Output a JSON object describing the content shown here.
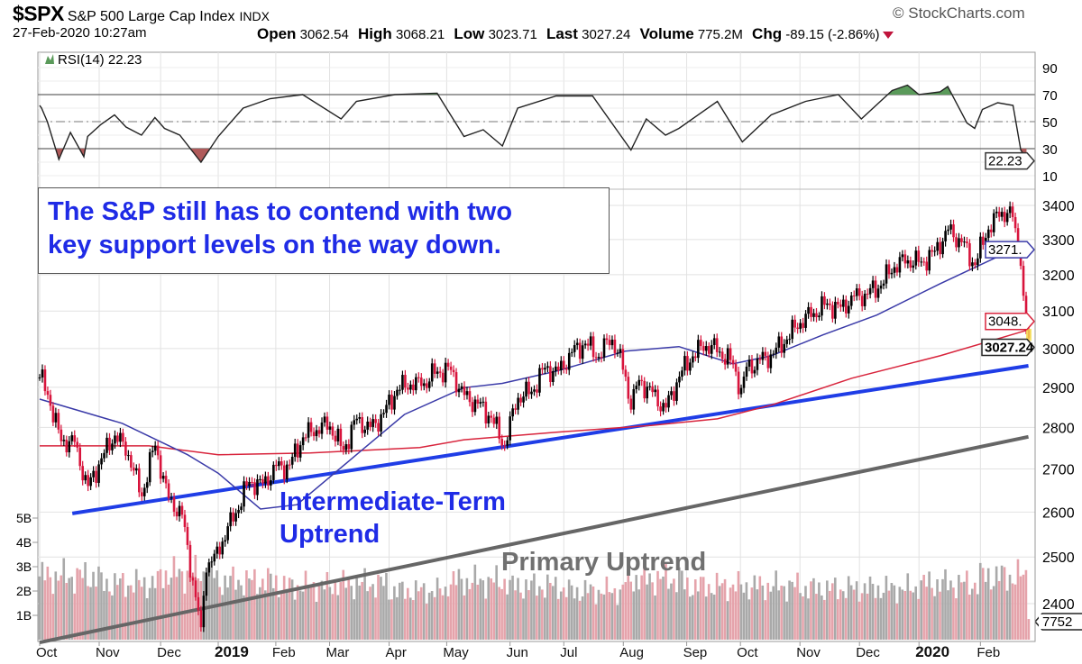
{
  "header": {
    "symbol": "$SPX",
    "name": "S&P 500 Large Cap Index",
    "exchange": "INDX",
    "datetime": "27-Feb-2020 10:27am",
    "copyright": "© StockCharts.com",
    "open_label": "Open",
    "open": "3062.54",
    "high_label": "High",
    "high": "3068.21",
    "low_label": "Low",
    "low": "3023.71",
    "last_label": "Last",
    "last": "3027.24",
    "volume_label": "Volume",
    "volume": "775.2M",
    "chg_label": "Chg",
    "chg": "-89.15 (-2.86%)",
    "chg_direction": "down"
  },
  "annotations": {
    "note_line1": "The S&P still has to contend with two",
    "note_line2": "key support levels on the way down.",
    "intermediate_line1": "Intermediate-Term",
    "intermediate_line2": "Uptrend",
    "primary": "Primary Uptrend"
  },
  "colors": {
    "up_bar": "#000000",
    "down_bar": "#d8143c",
    "ma50": "#3a3aa8",
    "ma200": "#d8243c",
    "trend_intermediate": "#1f3de6",
    "trend_primary": "#666666",
    "vol_up": "#a9a9a9",
    "vol_down": "#e5a3ab",
    "rsi_over": "#5a9a5a",
    "rsi_under": "#b05a5a",
    "text_blue": "#1f2be6"
  },
  "chart_data": {
    "type": "line",
    "title": "$SPX S&P 500 Large Cap Index",
    "x_range": [
      "2018-10-01",
      "2020-02-27"
    ],
    "x_ticks": [
      {
        "label": "Oct",
        "date": "2018-10-01"
      },
      {
        "label": "Nov",
        "date": "2018-11-01"
      },
      {
        "label": "Dec",
        "date": "2018-12-03"
      },
      {
        "label": "2019",
        "date": "2019-01-02",
        "bold": true
      },
      {
        "label": "Feb",
        "date": "2019-02-01"
      },
      {
        "label": "Mar",
        "date": "2019-03-01"
      },
      {
        "label": "Apr",
        "date": "2019-04-01"
      },
      {
        "label": "May",
        "date": "2019-05-01"
      },
      {
        "label": "Jun",
        "date": "2019-06-03"
      },
      {
        "label": "Jul",
        "date": "2019-07-01"
      },
      {
        "label": "Aug",
        "date": "2019-08-01"
      },
      {
        "label": "Sep",
        "date": "2019-09-03"
      },
      {
        "label": "Oct",
        "date": "2019-10-01"
      },
      {
        "label": "Nov",
        "date": "2019-11-01"
      },
      {
        "label": "Dec",
        "date": "2019-12-02"
      },
      {
        "label": "2020",
        "date": "2020-01-02",
        "bold": true
      },
      {
        "label": "Feb",
        "date": "2020-02-03"
      }
    ],
    "rsi": {
      "label": "RSI(14) 22.23",
      "period": 14,
      "last": "22.23",
      "ylim": [
        0,
        100
      ],
      "ticks": [
        10,
        30,
        50,
        70,
        90
      ],
      "levels": {
        "overbought": 70,
        "mid": 50,
        "oversold": 30
      },
      "points": [
        [
          "2018-10-01",
          62
        ],
        [
          "2018-10-02",
          60
        ],
        [
          "2018-10-05",
          50
        ],
        [
          "2018-10-11",
          22
        ],
        [
          "2018-10-17",
          42
        ],
        [
          "2018-10-24",
          24
        ],
        [
          "2018-10-26",
          39
        ],
        [
          "2018-11-02",
          48
        ],
        [
          "2018-11-09",
          55
        ],
        [
          "2018-11-15",
          46
        ],
        [
          "2018-11-23",
          40
        ],
        [
          "2018-11-30",
          53
        ],
        [
          "2018-12-05",
          45
        ],
        [
          "2018-12-13",
          40
        ],
        [
          "2018-12-24",
          20
        ],
        [
          "2019-01-02",
          39
        ],
        [
          "2019-01-15",
          60
        ],
        [
          "2019-01-29",
          67
        ],
        [
          "2019-02-15",
          70
        ],
        [
          "2019-03-07",
          52
        ],
        [
          "2019-03-15",
          65
        ],
        [
          "2019-04-04",
          70
        ],
        [
          "2019-04-26",
          71
        ],
        [
          "2019-05-10",
          39
        ],
        [
          "2019-05-20",
          44
        ],
        [
          "2019-05-30",
          32
        ],
        [
          "2019-06-07",
          60
        ],
        [
          "2019-06-27",
          69
        ],
        [
          "2019-07-16",
          69
        ],
        [
          "2019-08-05",
          29
        ],
        [
          "2019-08-13",
          52
        ],
        [
          "2019-08-23",
          40
        ],
        [
          "2019-08-30",
          45
        ],
        [
          "2019-09-19",
          65
        ],
        [
          "2019-10-02",
          35
        ],
        [
          "2019-10-17",
          55
        ],
        [
          "2019-11-04",
          65
        ],
        [
          "2019-11-21",
          70
        ],
        [
          "2019-12-03",
          52
        ],
        [
          "2019-12-19",
          73
        ],
        [
          "2019-12-27",
          77
        ],
        [
          "2020-01-02",
          70
        ],
        [
          "2020-01-13",
          72
        ],
        [
          "2020-01-17",
          76
        ],
        [
          "2020-01-27",
          49
        ],
        [
          "2020-01-31",
          45
        ],
        [
          "2020-02-04",
          59
        ],
        [
          "2020-02-12",
          64
        ],
        [
          "2020-02-20",
          62
        ],
        [
          "2020-02-24",
          29
        ],
        [
          "2020-02-27",
          22.23
        ]
      ]
    },
    "price": {
      "scale": "log",
      "ylim": [
        2300,
        3450
      ],
      "ticks": [
        2400,
        2500,
        2600,
        2700,
        2800,
        2900,
        3000,
        3100,
        3200,
        3300,
        3400
      ],
      "last": "3027.24",
      "ma50_last": "3271.",
      "ma200_last": "3048.",
      "closes": [
        [
          "2018-10-01",
          2925
        ],
        [
          "2018-10-05",
          2885
        ],
        [
          "2018-10-12",
          2767
        ],
        [
          "2018-10-19",
          2768
        ],
        [
          "2018-10-26",
          2658
        ],
        [
          "2018-11-02",
          2723
        ],
        [
          "2018-11-09",
          2781
        ],
        [
          "2018-11-16",
          2736
        ],
        [
          "2018-11-23",
          2633
        ],
        [
          "2018-11-30",
          2760
        ],
        [
          "2018-12-07",
          2633
        ],
        [
          "2018-12-14",
          2599
        ],
        [
          "2018-12-21",
          2417
        ],
        [
          "2018-12-24",
          2351
        ],
        [
          "2018-12-26",
          2467
        ],
        [
          "2018-12-31",
          2507
        ],
        [
          "2019-01-04",
          2532
        ],
        [
          "2019-01-11",
          2596
        ],
        [
          "2019-01-18",
          2670
        ],
        [
          "2019-01-25",
          2665
        ],
        [
          "2019-02-01",
          2707
        ],
        [
          "2019-02-08",
          2708
        ],
        [
          "2019-02-15",
          2775
        ],
        [
          "2019-02-22",
          2793
        ],
        [
          "2019-03-01",
          2804
        ],
        [
          "2019-03-08",
          2743
        ],
        [
          "2019-03-15",
          2822
        ],
        [
          "2019-03-22",
          2800
        ],
        [
          "2019-03-29",
          2834
        ],
        [
          "2019-04-05",
          2893
        ],
        [
          "2019-04-12",
          2907
        ],
        [
          "2019-04-18",
          2905
        ],
        [
          "2019-04-26",
          2940
        ],
        [
          "2019-05-03",
          2946
        ],
        [
          "2019-05-10",
          2881
        ],
        [
          "2019-05-17",
          2860
        ],
        [
          "2019-05-24",
          2826
        ],
        [
          "2019-05-31",
          2752
        ],
        [
          "2019-06-07",
          2873
        ],
        [
          "2019-06-14",
          2887
        ],
        [
          "2019-06-21",
          2950
        ],
        [
          "2019-06-28",
          2942
        ],
        [
          "2019-07-05",
          2990
        ],
        [
          "2019-07-12",
          3014
        ],
        [
          "2019-07-19",
          2977
        ],
        [
          "2019-07-26",
          3026
        ],
        [
          "2019-08-02",
          2932
        ],
        [
          "2019-08-05",
          2844
        ],
        [
          "2019-08-09",
          2919
        ],
        [
          "2019-08-16",
          2889
        ],
        [
          "2019-08-23",
          2847
        ],
        [
          "2019-08-30",
          2926
        ],
        [
          "2019-09-06",
          2979
        ],
        [
          "2019-09-13",
          3007
        ],
        [
          "2019-09-20",
          2992
        ],
        [
          "2019-09-27",
          2962
        ],
        [
          "2019-10-02",
          2887
        ],
        [
          "2019-10-04",
          2952
        ],
        [
          "2019-10-11",
          2970
        ],
        [
          "2019-10-18",
          2986
        ],
        [
          "2019-10-25",
          3023
        ],
        [
          "2019-11-01",
          3067
        ],
        [
          "2019-11-08",
          3093
        ],
        [
          "2019-11-15",
          3120
        ],
        [
          "2019-11-22",
          3110
        ],
        [
          "2019-11-29",
          3141
        ],
        [
          "2019-12-06",
          3146
        ],
        [
          "2019-12-13",
          3169
        ],
        [
          "2019-12-20",
          3221
        ],
        [
          "2019-12-27",
          3240
        ],
        [
          "2020-01-03",
          3235
        ],
        [
          "2020-01-10",
          3265
        ],
        [
          "2020-01-17",
          3330
        ],
        [
          "2020-01-24",
          3295
        ],
        [
          "2020-01-31",
          3225
        ],
        [
          "2020-02-07",
          3328
        ],
        [
          "2020-02-14",
          3380
        ],
        [
          "2020-02-19",
          3386
        ],
        [
          "2020-02-21",
          3338
        ],
        [
          "2020-02-24",
          3225
        ],
        [
          "2020-02-25",
          3128
        ],
        [
          "2020-02-26",
          3116
        ],
        [
          "2020-02-27",
          3027
        ]
      ],
      "ma50": [
        [
          "2018-10-01",
          2870
        ],
        [
          "2018-11-13",
          2810
        ],
        [
          "2018-12-17",
          2734
        ],
        [
          "2019-01-02",
          2690
        ],
        [
          "2019-01-24",
          2607
        ],
        [
          "2019-02-12",
          2617
        ],
        [
          "2019-03-15",
          2734
        ],
        [
          "2019-04-09",
          2832
        ],
        [
          "2019-05-10",
          2899
        ],
        [
          "2019-05-30",
          2910
        ],
        [
          "2019-06-27",
          2941
        ],
        [
          "2019-08-02",
          2993
        ],
        [
          "2019-08-30",
          3005
        ],
        [
          "2019-09-27",
          2960
        ],
        [
          "2019-10-17",
          2981
        ],
        [
          "2019-11-13",
          3036
        ],
        [
          "2019-12-11",
          3089
        ],
        [
          "2020-01-13",
          3175
        ],
        [
          "2020-02-05",
          3233
        ],
        [
          "2020-02-19",
          3269
        ],
        [
          "2020-02-27",
          3271
        ]
      ],
      "ma200": [
        [
          "2018-10-01",
          2755
        ],
        [
          "2018-11-27",
          2755
        ],
        [
          "2019-01-02",
          2734
        ],
        [
          "2019-02-19",
          2738
        ],
        [
          "2019-04-17",
          2751
        ],
        [
          "2019-05-10",
          2770
        ],
        [
          "2019-06-27",
          2788
        ],
        [
          "2019-08-16",
          2805
        ],
        [
          "2019-09-19",
          2821
        ],
        [
          "2019-10-17",
          2855
        ],
        [
          "2019-11-28",
          2923
        ],
        [
          "2020-01-13",
          2981
        ],
        [
          "2020-02-27",
          3048
        ]
      ],
      "trendlines": [
        {
          "name": "Intermediate-Term Uptrend",
          "from": [
            "2018-10-18",
            2597
          ],
          "to": [
            "2020-02-28",
            2955
          ]
        },
        {
          "name": "Primary Uptrend",
          "from": [
            "2018-10-01",
            2320
          ],
          "to": [
            "2020-02-28",
            2777
          ]
        }
      ]
    },
    "volume": {
      "unit": "B",
      "ticks": [
        "1B",
        "2B",
        "3B",
        "4B",
        "5B"
      ],
      "last_label": "7752",
      "monthly_avg_b": [
        [
          "2018-10",
          2.6
        ],
        [
          "2018-11",
          2.3
        ],
        [
          "2018-12",
          2.7
        ],
        [
          "2019-01",
          2.4
        ],
        [
          "2019-02",
          2.2
        ],
        [
          "2019-03",
          2.3
        ],
        [
          "2019-04",
          2.0
        ],
        [
          "2019-05",
          2.4
        ],
        [
          "2019-06",
          2.2
        ],
        [
          "2019-07",
          2.0
        ],
        [
          "2019-08",
          2.5
        ],
        [
          "2019-09",
          2.2
        ],
        [
          "2019-10",
          2.2
        ],
        [
          "2019-11",
          2.1
        ],
        [
          "2019-12",
          2.1
        ],
        [
          "2020-01",
          2.3
        ],
        [
          "2020-02",
          2.6
        ]
      ]
    }
  }
}
